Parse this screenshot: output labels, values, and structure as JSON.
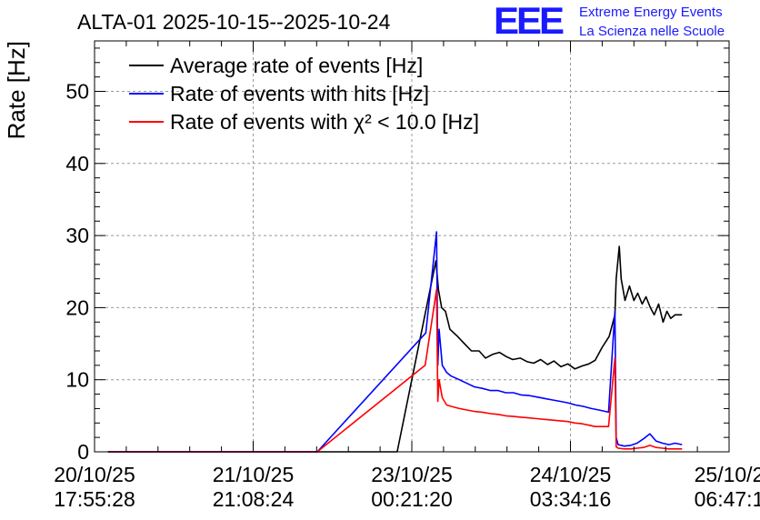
{
  "chart_data": {
    "type": "line",
    "title": "ALTA-01 2025-10-15--2025-10-24",
    "ylabel": "Rate [Hz]",
    "xlabel": "",
    "ylim": [
      0,
      57
    ],
    "xlim": [
      0,
      100
    ],
    "grid": true,
    "legend_position": "top-left",
    "y_ticks": [
      0,
      10,
      20,
      30,
      40,
      50
    ],
    "x_ticks": [
      {
        "pos": 0,
        "line1": "20/10/25",
        "line2": "17:55:28"
      },
      {
        "pos": 25,
        "line1": "21/10/25",
        "line2": "21:08:24"
      },
      {
        "pos": 50,
        "line1": "23/10/25",
        "line2": "00:21:20"
      },
      {
        "pos": 75,
        "line1": "24/10/25",
        "line2": "03:34:16"
      },
      {
        "pos": 100,
        "line1": "25/10/2",
        "line2": "06:47:1"
      }
    ],
    "series": [
      {
        "name": "Average rate of events [Hz]",
        "color": "#000000",
        "x": [
          2.1,
          47.7,
          53.8,
          54.2,
          54.7,
          55.3,
          56.0,
          57.2,
          58.3,
          59.4,
          60.6,
          61.6,
          62.7,
          63.8,
          64.9,
          65.9,
          67.1,
          68.2,
          69.2,
          70.3,
          71.4,
          72.4,
          73.5,
          74.6,
          75.7,
          76.8,
          77.9,
          78.9,
          80.0,
          81.1,
          82.0,
          82.2,
          82.7,
          83.0,
          83.6,
          84.3,
          85.0,
          85.6,
          86.3,
          86.9,
          87.6,
          88.2,
          88.9,
          89.6,
          90.2,
          90.8,
          91.5,
          92.1,
          92.6
        ],
        "y": [
          0,
          0,
          26.5,
          22.5,
          20,
          19.5,
          17,
          16,
          15,
          14,
          14,
          13,
          13.5,
          13.8,
          13.2,
          12.8,
          13,
          12.5,
          12.3,
          12.8,
          12.1,
          12.6,
          11.8,
          12.2,
          11.5,
          11.9,
          12.2,
          12.7,
          14.5,
          16,
          19,
          24,
          28.5,
          24,
          21,
          23,
          21,
          22,
          20.5,
          21.5,
          20,
          19,
          20.5,
          18,
          19.5,
          18.5,
          19,
          19,
          19
        ]
      },
      {
        "name": "Rate of events with hits [Hz]",
        "color": "#0000ff",
        "x": [
          2.1,
          35.1,
          52.2,
          53.9,
          54.1,
          54.3,
          54.8,
          55.5,
          56.2,
          57.5,
          58.7,
          59.9,
          61.1,
          62.4,
          63.6,
          64.8,
          66.0,
          67.2,
          68.5,
          69.7,
          70.9,
          72.1,
          73.4,
          74.6,
          75.8,
          77.0,
          78.3,
          79.5,
          81.0,
          82.0,
          82.2,
          82.5,
          83.5,
          84.5,
          85.5,
          86.5,
          87.5,
          88.5,
          89.5,
          90.5,
          91.5,
          92.6
        ],
        "y": [
          0,
          0,
          16.5,
          30.5,
          12,
          17,
          12,
          11,
          10.5,
          10,
          9.5,
          9,
          8.8,
          8.5,
          8.5,
          8.2,
          8.2,
          7.9,
          7.8,
          7.6,
          7.4,
          7.2,
          7.0,
          6.8,
          6.5,
          6.3,
          6.0,
          5.8,
          5.5,
          19.5,
          2,
          1,
          0.8,
          0.9,
          1.2,
          1.8,
          2.5,
          1.5,
          1.2,
          1.0,
          1.2,
          1.0
        ]
      },
      {
        "name": "Rate of events with χ² < 10.0 [Hz]",
        "color": "#ff0000",
        "x": [
          2.1,
          35.1,
          52.1,
          53.9,
          54.1,
          54.3,
          54.8,
          55.5,
          56.2,
          57.5,
          58.7,
          59.9,
          61.1,
          62.4,
          63.6,
          64.8,
          66.0,
          67.2,
          68.5,
          69.7,
          70.9,
          72.1,
          73.4,
          74.6,
          75.7,
          76.8,
          77.9,
          78.9,
          81.0,
          82.0,
          82.2,
          82.5,
          83.5,
          84.5,
          85.5,
          86.5,
          87.5,
          88.5,
          89.5,
          90.5,
          91.5,
          92.6
        ],
        "y": [
          0,
          0,
          12,
          22.5,
          7,
          10,
          7.5,
          6.5,
          6.3,
          6.0,
          5.8,
          5.6,
          5.5,
          5.3,
          5.2,
          5.0,
          4.9,
          4.8,
          4.7,
          4.6,
          4.5,
          4.4,
          4.3,
          4.2,
          4.0,
          3.9,
          3.7,
          3.5,
          3.5,
          13,
          0.7,
          0.5,
          0.4,
          0.4,
          0.5,
          0.6,
          0.9,
          0.6,
          0.5,
          0.4,
          0.4,
          0.4
        ]
      }
    ]
  },
  "logo": {
    "mark": "EEE",
    "line1": "Extreme Energy Events",
    "line2": "La Scienza nelle Scuole"
  }
}
